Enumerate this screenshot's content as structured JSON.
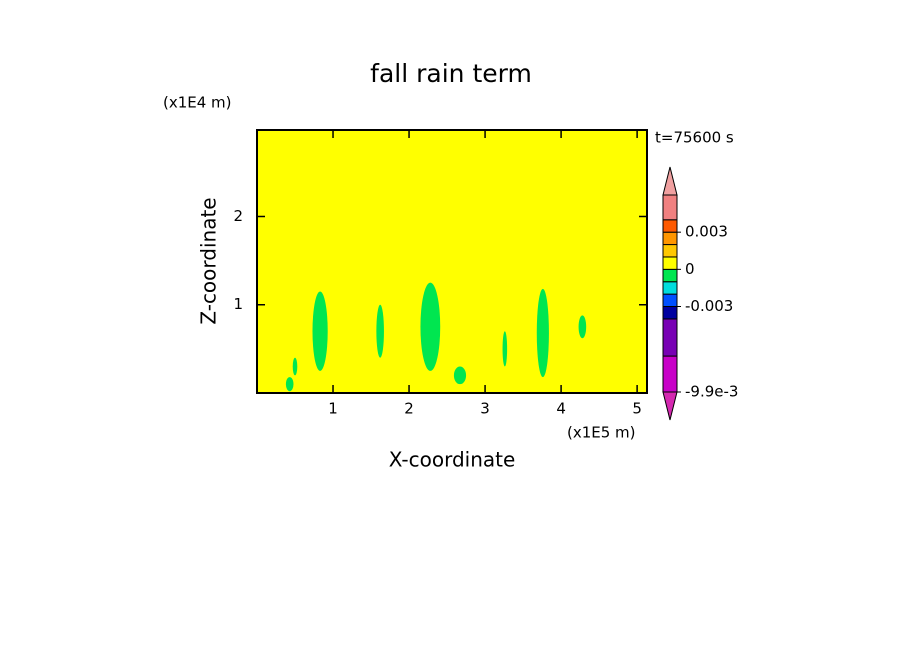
{
  "chart_data": {
    "type": "contour",
    "title": "fall rain term",
    "x_label": "X-coordinate",
    "y_label": "Z-coordinate",
    "x_unit": "(x1E5 m)",
    "y_unit": "(x1E4 m)",
    "time_label": "t=75600 s",
    "xlim": [
      0,
      5.13
    ],
    "ylim": [
      0,
      2.98
    ],
    "xticks": [
      1,
      2,
      3,
      4,
      5
    ],
    "yticks": [
      1,
      2
    ],
    "background_color": "#ffff00",
    "levels": [
      -0.0099,
      -0.007,
      -0.004,
      -0.003,
      -0.002,
      -0.001,
      0,
      0.001,
      0.002,
      0.003,
      0.004,
      0.006
    ],
    "level_colors": [
      "#c800c8",
      "#7800b4",
      "#0000a0",
      "#0050ff",
      "#00dcdc",
      "#00e650",
      "#ffff00",
      "#ffc800",
      "#ff9600",
      "#ff5a00",
      "#f08080"
    ],
    "extend_colors": [
      "#d428b0",
      "#f0a0a0"
    ],
    "cbticks": [
      {
        "value": -0.0099,
        "label": "-9.9e-3"
      },
      -0.003,
      0,
      0.003
    ],
    "region_color": "#00e650",
    "regions": [
      {
        "x": 0.83,
        "z": 0.7,
        "dx": 0.1,
        "dz": 0.45
      },
      {
        "x": 1.62,
        "z": 0.7,
        "dx": 0.05,
        "dz": 0.3
      },
      {
        "x": 2.28,
        "z": 0.75,
        "dx": 0.13,
        "dz": 0.5
      },
      {
        "x": 3.26,
        "z": 0.5,
        "dx": 0.03,
        "dz": 0.2
      },
      {
        "x": 3.76,
        "z": 0.68,
        "dx": 0.08,
        "dz": 0.5
      },
      {
        "x": 4.28,
        "z": 0.75,
        "dx": 0.05,
        "dz": 0.13
      },
      {
        "x": 0.5,
        "z": 0.3,
        "dx": 0.03,
        "dz": 0.1
      },
      {
        "x": 2.67,
        "z": 0.2,
        "dx": 0.08,
        "dz": 0.1
      },
      {
        "x": 0.43,
        "z": 0.1,
        "dx": 0.05,
        "dz": 0.08
      }
    ]
  }
}
